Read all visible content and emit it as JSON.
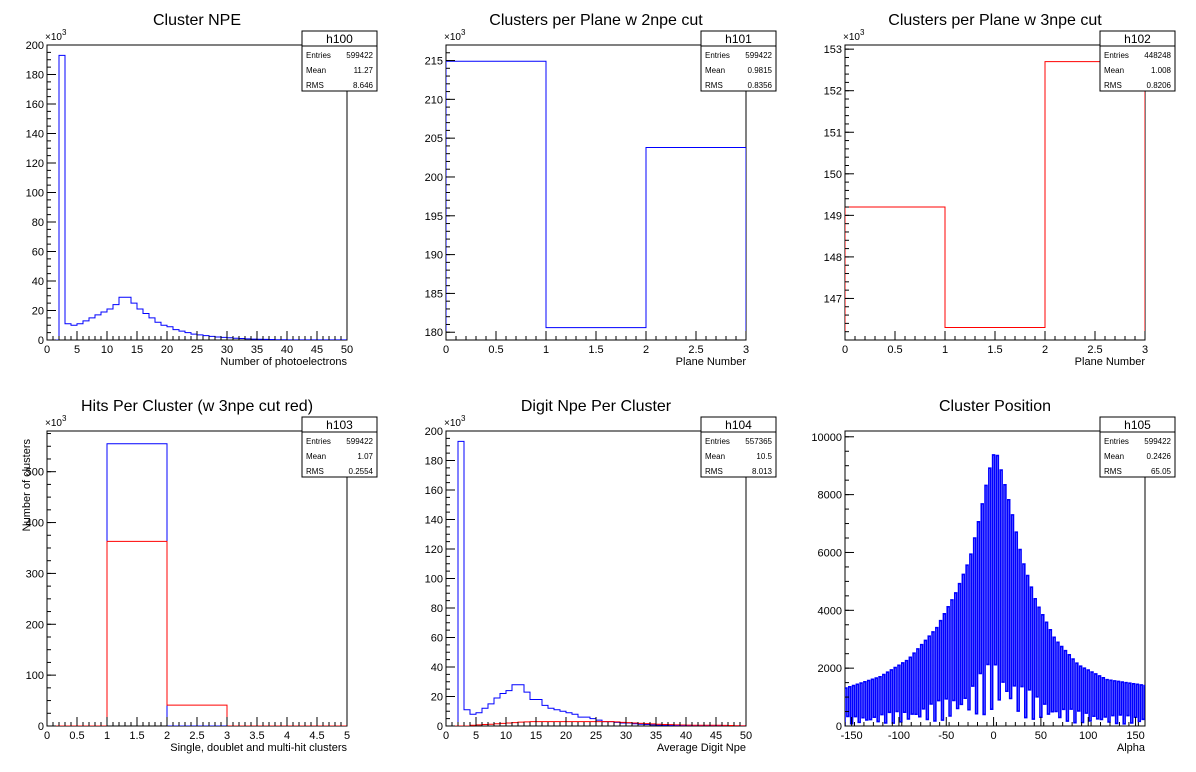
{
  "charts": [
    {
      "id": "h100",
      "title": "Cluster NPE",
      "xlabel": "Number of photoelectrons",
      "ylabel": "",
      "yexp": "×10",
      "yexp_pow": "3",
      "stats": {
        "name": "h100",
        "rows": [
          [
            "Entries",
            "599422"
          ],
          [
            "Mean",
            "11.27"
          ],
          [
            "RMS",
            "8.646"
          ]
        ]
      }
    },
    {
      "id": "h101",
      "title": "Clusters per Plane w 2npe cut",
      "xlabel": "Plane Number",
      "ylabel": "",
      "yexp": "×10",
      "yexp_pow": "3",
      "stats": {
        "name": "h101",
        "rows": [
          [
            "Entries",
            "599422"
          ],
          [
            "Mean",
            "0.9815"
          ],
          [
            "RMS",
            "0.8356"
          ]
        ]
      }
    },
    {
      "id": "h102",
      "title": "Clusters per Plane w 3npe cut",
      "xlabel": "Plane Number",
      "ylabel": "",
      "yexp": "×10",
      "yexp_pow": "3",
      "stats": {
        "name": "h102",
        "rows": [
          [
            "Entries",
            "448248"
          ],
          [
            "Mean",
            "1.008"
          ],
          [
            "RMS",
            "0.8206"
          ]
        ]
      }
    },
    {
      "id": "h103",
      "title": "Hits Per Cluster (w 3npe cut red)",
      "xlabel": "Single, doublet and multi-hit clusters",
      "ylabel": "Number of clusters",
      "yexp": "×10",
      "yexp_pow": "3",
      "stats": {
        "name": "h103",
        "rows": [
          [
            "Entries",
            "599422"
          ],
          [
            "Mean",
            "1.07"
          ],
          [
            "RMS",
            "0.2554"
          ]
        ]
      }
    },
    {
      "id": "h104",
      "title": "Digit Npe Per Cluster",
      "xlabel": "Average Digit Npe",
      "ylabel": "",
      "yexp": "×10",
      "yexp_pow": "3",
      "stats": {
        "name": "h104",
        "rows": [
          [
            "Entries",
            "557365"
          ],
          [
            "Mean",
            "10.5"
          ],
          [
            "RMS",
            "8.013"
          ]
        ]
      }
    },
    {
      "id": "h105",
      "title": "Cluster Position",
      "xlabel": "Alpha",
      "ylabel": "",
      "yexp": "",
      "yexp_pow": "",
      "stats": {
        "name": "h105",
        "rows": [
          [
            "Entries",
            "599422"
          ],
          [
            "Mean",
            "0.2426"
          ],
          [
            "RMS",
            "65.05"
          ]
        ]
      }
    }
  ],
  "chart_data": [
    {
      "type": "histogram",
      "title": "Cluster NPE",
      "xlabel": "Number of photoelectrons",
      "xlim": [
        0,
        50
      ],
      "ylim": [
        0,
        200
      ],
      "ymult": "x10^3",
      "xticks": [
        0,
        5,
        10,
        15,
        20,
        25,
        30,
        35,
        40,
        45,
        50
      ],
      "yticks": [
        0,
        20,
        40,
        60,
        80,
        100,
        120,
        140,
        160,
        180,
        200
      ],
      "series": [
        {
          "color": "#0000ff",
          "bin_width": 1,
          "x_start": 2,
          "values": [
            193,
            11,
            10,
            11,
            13,
            15,
            17,
            19,
            21,
            24,
            29,
            29,
            25,
            21,
            18,
            15,
            12,
            10,
            9,
            7,
            6,
            5,
            4,
            3.5,
            3,
            2.5,
            2,
            1.8,
            1.5,
            1.2,
            1,
            0.8,
            0.6,
            0.5,
            0.4,
            0.3,
            0.2,
            0.2,
            0.1,
            0.1,
            0.1,
            0.1,
            0.1,
            0.1,
            0.1,
            0.1,
            0.1,
            0.1
          ]
        }
      ]
    },
    {
      "type": "histogram",
      "title": "Clusters per Plane w 2npe cut",
      "xlabel": "Plane Number",
      "xlim": [
        0,
        3
      ],
      "ylim": [
        179,
        217
      ],
      "ymult": "x10^3",
      "xticks": [
        0,
        0.5,
        1,
        1.5,
        2,
        2.5,
        3
      ],
      "yticks": [
        180,
        185,
        190,
        195,
        200,
        205,
        210,
        215
      ],
      "series": [
        {
          "color": "#0000ff",
          "bin_width": 1,
          "x_start": 0,
          "values": [
            214.9,
            180.6,
            203.8
          ]
        }
      ]
    },
    {
      "type": "histogram",
      "title": "Clusters per Plane w 3npe cut",
      "xlabel": "Plane Number",
      "xlim": [
        0,
        3
      ],
      "ylim": [
        146.0,
        153.1
      ],
      "ymult": "x10^3",
      "xticks": [
        0,
        0.5,
        1,
        1.5,
        2,
        2.5,
        3
      ],
      "yticks": [
        147,
        148,
        149,
        150,
        151,
        152,
        153
      ],
      "series": [
        {
          "color": "#ff0000",
          "bin_width": 1,
          "x_start": 0,
          "values": [
            149.2,
            146.3,
            152.7
          ]
        }
      ]
    },
    {
      "type": "histogram",
      "title": "Hits Per Cluster (w 3npe cut red)",
      "xlabel": "Single, doublet and multi-hit clusters",
      "ylabel": "Number of clusters",
      "xlim": [
        0,
        5
      ],
      "ylim": [
        0,
        580
      ],
      "ymult": "x10^3",
      "xticks": [
        0,
        0.5,
        1,
        1.5,
        2,
        2.5,
        3,
        3.5,
        4,
        4.5,
        5
      ],
      "yticks": [
        0,
        100,
        200,
        300,
        400,
        500
      ],
      "series": [
        {
          "color": "#0000ff",
          "bin_width": 1,
          "x_start": 0,
          "values": [
            0,
            555,
            0,
            0,
            0
          ]
        },
        {
          "color": "#ff0000",
          "bin_width": 1,
          "x_start": 0,
          "values": [
            0,
            363,
            41,
            0,
            0
          ]
        }
      ]
    },
    {
      "type": "histogram",
      "title": "Digit Npe Per Cluster",
      "xlabel": "Average Digit Npe",
      "xlim": [
        0,
        50
      ],
      "ylim": [
        0,
        200
      ],
      "ymult": "x10^3",
      "xticks": [
        0,
        5,
        10,
        15,
        20,
        25,
        30,
        35,
        40,
        45,
        50
      ],
      "yticks": [
        0,
        20,
        40,
        60,
        80,
        100,
        120,
        140,
        160,
        180,
        200
      ],
      "series": [
        {
          "color": "#0000ff",
          "bin_width": 1,
          "x_start": 2,
          "values": [
            193,
            11,
            8,
            9,
            12,
            15,
            19,
            22,
            24,
            28,
            28,
            23,
            18,
            18,
            14,
            12,
            11,
            10,
            9,
            8,
            6,
            6,
            5,
            4,
            3,
            3,
            2.5,
            2,
            2,
            1.5,
            1.2,
            1,
            0.8,
            0.6,
            0.5,
            0.4,
            0.3,
            0.2,
            0.1,
            0.1,
            0.1,
            0.1,
            0.1,
            0.1,
            0.1,
            0.1,
            0.1,
            0.1
          ]
        },
        {
          "color": "#ff0000",
          "bin_width": 1,
          "x_start": 2,
          "values": [
            0,
            0,
            0.5,
            0.8,
            1,
            1.2,
            1.5,
            1.8,
            2,
            2.3,
            2.6,
            2.8,
            3,
            3,
            3,
            3,
            3,
            3,
            3,
            3,
            3,
            3,
            3,
            3,
            3,
            3,
            2.8,
            2.5,
            2.3,
            2,
            1.8,
            1.6,
            1.4,
            1.2,
            1,
            0.9,
            0.8,
            0.7,
            0.6,
            0.5,
            0.5,
            0.5,
            0.5,
            0.5,
            0.4,
            0.3,
            0.2,
            0.1
          ]
        }
      ]
    },
    {
      "type": "histogram",
      "title": "Cluster Position",
      "xlabel": "Alpha",
      "xlim": [
        -157,
        160
      ],
      "ylim": [
        0,
        10200
      ],
      "xticks": [
        -150,
        -100,
        -50,
        0,
        50,
        100,
        150
      ],
      "yticks": [
        0,
        2000,
        4000,
        6000,
        8000,
        10000
      ],
      "series": [
        {
          "color": "#0000ff",
          "bin_width": 2,
          "x_start": -157,
          "comb": true,
          "envelope": [
            [
              -157,
              1300
            ],
            [
              -120,
              1700
            ],
            [
              -90,
              2300
            ],
            [
              -60,
              3400
            ],
            [
              -40,
              4600
            ],
            [
              -25,
              5800
            ],
            [
              -15,
              7200
            ],
            [
              -5,
              8800
            ],
            [
              2,
              9600
            ],
            [
              10,
              8600
            ],
            [
              20,
              7300
            ],
            [
              30,
              5800
            ],
            [
              45,
              4300
            ],
            [
              65,
              3000
            ],
            [
              90,
              2100
            ],
            [
              120,
              1600
            ],
            [
              160,
              1400
            ]
          ]
        }
      ]
    }
  ]
}
